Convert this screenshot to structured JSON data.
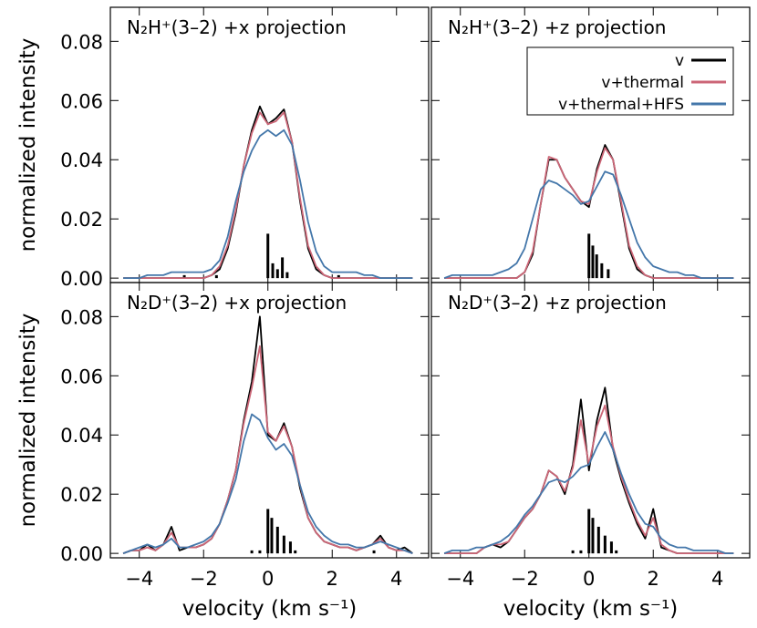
{
  "chart_data": [
    {
      "type": "line",
      "title": "N₂H⁺(3–2) +x projection",
      "ylabel": "normalized intensity",
      "x": [
        -4.5,
        -4.25,
        -4,
        -3.75,
        -3.5,
        -3.25,
        -3,
        -2.75,
        -2.5,
        -2.25,
        -2,
        -1.75,
        -1.5,
        -1.25,
        -1,
        -0.75,
        -0.5,
        -0.25,
        0,
        0.25,
        0.5,
        0.75,
        1,
        1.25,
        1.5,
        1.75,
        2,
        2.25,
        2.5,
        2.75,
        3,
        3.25,
        3.5,
        3.75,
        4,
        4.25,
        4.5
      ],
      "series": [
        {
          "color": "#000000",
          "values": [
            0,
            0,
            0,
            0,
            0,
            0,
            0,
            0,
            0,
            0,
            0,
            0.001,
            0.003,
            0.01,
            0.022,
            0.038,
            0.05,
            0.058,
            0.052,
            0.054,
            0.057,
            0.046,
            0.026,
            0.01,
            0.003,
            0.001,
            0,
            0,
            0,
            0,
            0,
            0,
            0,
            0,
            0,
            0,
            0
          ]
        },
        {
          "color": "#cc6677",
          "values": [
            0,
            0,
            0,
            0,
            0,
            0,
            0,
            0,
            0,
            0,
            0,
            0.001,
            0.004,
            0.011,
            0.023,
            0.038,
            0.049,
            0.056,
            0.052,
            0.053,
            0.056,
            0.046,
            0.027,
            0.011,
            0.004,
            0.001,
            0,
            0,
            0,
            0,
            0,
            0,
            0,
            0,
            0,
            0,
            0
          ]
        },
        {
          "color": "#4477aa",
          "values": [
            0,
            0,
            0,
            0.001,
            0.001,
            0.001,
            0.002,
            0.002,
            0.002,
            0.002,
            0.002,
            0.003,
            0.006,
            0.014,
            0.026,
            0.036,
            0.043,
            0.048,
            0.05,
            0.048,
            0.05,
            0.045,
            0.033,
            0.019,
            0.009,
            0.004,
            0.002,
            0.002,
            0.002,
            0.002,
            0.001,
            0.001,
            0,
            0,
            0,
            0,
            0
          ]
        }
      ],
      "components": {
        "x": [
          -2.6,
          -1.6,
          0,
          0.15,
          0.3,
          0.45,
          0.6,
          2.2
        ],
        "values": [
          0.001,
          0.001,
          0.015,
          0.005,
          0.003,
          0.007,
          0.002,
          0.001
        ]
      },
      "ylim": [
        -0.0015,
        0.0915
      ],
      "yticks": [
        {
          "value": 0,
          "label": "0.00"
        },
        {
          "value": 0.02,
          "label": "0.02"
        },
        {
          "value": 0.04,
          "label": "0.04"
        },
        {
          "value": 0.06,
          "label": "0.06"
        },
        {
          "value": 0.08,
          "label": "0.08"
        }
      ],
      "xlim": [
        -4.9,
        5.0
      ]
    },
    {
      "type": "line",
      "title": "N₂H⁺(3–2) +z projection",
      "legend": "upper right",
      "x": [
        -4.5,
        -4.25,
        -4,
        -3.75,
        -3.5,
        -3.25,
        -3,
        -2.75,
        -2.5,
        -2.25,
        -2,
        -1.75,
        -1.5,
        -1.25,
        -1,
        -0.75,
        -0.5,
        -0.25,
        0,
        0.25,
        0.5,
        0.75,
        1,
        1.25,
        1.5,
        1.75,
        2,
        2.25,
        2.5,
        2.75,
        3,
        3.25,
        3.5,
        3.75,
        4,
        4.25,
        4.5
      ],
      "series": [
        {
          "name": "v",
          "color": "#000000",
          "values": [
            0,
            0,
            0,
            0,
            0,
            0,
            0,
            0,
            0,
            0,
            0.002,
            0.008,
            0.025,
            0.04,
            0.04,
            0.034,
            0.03,
            0.026,
            0.024,
            0.037,
            0.045,
            0.04,
            0.025,
            0.01,
            0.003,
            0.001,
            0,
            0,
            0,
            0,
            0,
            0,
            0,
            0,
            0,
            0,
            0
          ]
        },
        {
          "name": "v+thermal",
          "color": "#cc6677",
          "values": [
            0,
            0,
            0,
            0,
            0,
            0,
            0,
            0,
            0,
            0,
            0.002,
            0.009,
            0.025,
            0.041,
            0.04,
            0.034,
            0.03,
            0.026,
            0.025,
            0.036,
            0.044,
            0.04,
            0.026,
            0.011,
            0.004,
            0.001,
            0,
            0,
            0,
            0,
            0,
            0,
            0,
            0,
            0,
            0,
            0
          ]
        },
        {
          "name": "v+thermal+HFS",
          "color": "#4477aa",
          "values": [
            0,
            0.001,
            0.001,
            0.001,
            0.001,
            0.001,
            0.001,
            0.002,
            0.003,
            0.005,
            0.01,
            0.02,
            0.03,
            0.033,
            0.032,
            0.03,
            0.028,
            0.025,
            0.026,
            0.031,
            0.036,
            0.035,
            0.028,
            0.02,
            0.012,
            0.007,
            0.004,
            0.003,
            0.002,
            0.002,
            0.001,
            0.001,
            0,
            0,
            0,
            0,
            0
          ]
        }
      ],
      "components": {
        "x": [
          0,
          0.12,
          0.24,
          0.4,
          0.6
        ],
        "values": [
          0.015,
          0.011,
          0.008,
          0.005,
          0.003
        ]
      },
      "ylim": [
        -0.0015,
        0.0915
      ],
      "xlim": [
        -4.9,
        5.0
      ]
    },
    {
      "type": "line",
      "title": "N₂D⁺(3–2) +x projection",
      "ylabel": "normalized intensity",
      "xlabel": "velocity (km s⁻¹)",
      "x": [
        -4.5,
        -4.25,
        -4,
        -3.75,
        -3.5,
        -3.25,
        -3,
        -2.75,
        -2.5,
        -2.25,
        -2,
        -1.75,
        -1.5,
        -1.25,
        -1,
        -0.75,
        -0.5,
        -0.25,
        0,
        0.25,
        0.5,
        0.75,
        1,
        1.25,
        1.5,
        1.75,
        2,
        2.25,
        2.5,
        2.75,
        3,
        3.25,
        3.5,
        3.75,
        4,
        4.25,
        4.5
      ],
      "series": [
        {
          "color": "#000000",
          "values": [
            0,
            0.001,
            0.001,
            0.003,
            0.001,
            0.003,
            0.009,
            0.001,
            0.002,
            0.002,
            0.003,
            0.005,
            0.01,
            0.018,
            0.028,
            0.045,
            0.058,
            0.08,
            0.04,
            0.038,
            0.044,
            0.036,
            0.022,
            0.012,
            0.007,
            0.004,
            0.003,
            0.002,
            0.002,
            0.001,
            0.002,
            0.003,
            0.006,
            0.002,
            0.001,
            0.002,
            0
          ]
        },
        {
          "color": "#cc6677",
          "values": [
            0,
            0.001,
            0.001,
            0.002,
            0.001,
            0.003,
            0.007,
            0.002,
            0.002,
            0.002,
            0.003,
            0.005,
            0.01,
            0.018,
            0.028,
            0.044,
            0.056,
            0.07,
            0.041,
            0.038,
            0.043,
            0.036,
            0.023,
            0.012,
            0.007,
            0.004,
            0.003,
            0.002,
            0.002,
            0.001,
            0.002,
            0.003,
            0.005,
            0.002,
            0.001,
            0.001,
            0
          ]
        },
        {
          "color": "#4477aa",
          "values": [
            0,
            0.001,
            0.002,
            0.003,
            0.002,
            0.003,
            0.005,
            0.002,
            0.002,
            0.003,
            0.004,
            0.006,
            0.01,
            0.017,
            0.025,
            0.038,
            0.047,
            0.045,
            0.039,
            0.035,
            0.037,
            0.033,
            0.023,
            0.014,
            0.009,
            0.006,
            0.004,
            0.003,
            0.003,
            0.002,
            0.002,
            0.003,
            0.004,
            0.003,
            0.002,
            0.001,
            0
          ]
        }
      ],
      "components": {
        "x": [
          -0.5,
          -0.25,
          0,
          0.12,
          0.3,
          0.5,
          0.7,
          0.85,
          3.3
        ],
        "values": [
          0.001,
          0.001,
          0.015,
          0.012,
          0.009,
          0.006,
          0.004,
          0.001,
          0.001
        ]
      },
      "ylim": [
        -0.0015,
        0.0915
      ],
      "yticks": [
        {
          "value": 0,
          "label": "0.00"
        },
        {
          "value": 0.02,
          "label": "0.02"
        },
        {
          "value": 0.04,
          "label": "0.04"
        },
        {
          "value": 0.06,
          "label": "0.06"
        },
        {
          "value": 0.08,
          "label": "0.08"
        }
      ],
      "xlim": [
        -4.9,
        5.0
      ],
      "xticks": [
        {
          "value": -4,
          "label": "−4"
        },
        {
          "value": -2,
          "label": "−2"
        },
        0,
        2,
        4
      ]
    },
    {
      "type": "line",
      "title": "N₂D⁺(3–2) +z projection",
      "xlabel": "velocity (km s⁻¹)",
      "x": [
        -4.5,
        -4.25,
        -4,
        -3.75,
        -3.5,
        -3.25,
        -3,
        -2.75,
        -2.5,
        -2.25,
        -2,
        -1.75,
        -1.5,
        -1.25,
        -1,
        -0.75,
        -0.5,
        -0.25,
        0,
        0.25,
        0.5,
        0.75,
        1,
        1.25,
        1.5,
        1.75,
        2,
        2.25,
        2.5,
        2.75,
        3,
        3.25,
        3.5,
        3.75,
        4,
        4.25,
        4.5
      ],
      "series": [
        {
          "color": "#000000",
          "values": [
            0,
            0,
            0,
            0,
            0,
            0.002,
            0.003,
            0.002,
            0.004,
            0.008,
            0.012,
            0.015,
            0.02,
            0.028,
            0.026,
            0.02,
            0.03,
            0.052,
            0.028,
            0.045,
            0.056,
            0.035,
            0.025,
            0.017,
            0.01,
            0.005,
            0.015,
            0.002,
            0.001,
            0,
            0,
            0,
            0,
            0,
            0,
            0,
            0
          ]
        },
        {
          "color": "#cc6677",
          "values": [
            0,
            0,
            0,
            0,
            0,
            0.002,
            0.003,
            0.003,
            0.004,
            0.008,
            0.012,
            0.015,
            0.02,
            0.028,
            0.026,
            0.021,
            0.029,
            0.045,
            0.03,
            0.043,
            0.05,
            0.036,
            0.026,
            0.018,
            0.011,
            0.006,
            0.012,
            0.003,
            0.001,
            0,
            0,
            0,
            0,
            0,
            0,
            0,
            0
          ]
        },
        {
          "color": "#4477aa",
          "values": [
            0,
            0.001,
            0.001,
            0.001,
            0.002,
            0.002,
            0.003,
            0.004,
            0.006,
            0.009,
            0.013,
            0.016,
            0.02,
            0.024,
            0.025,
            0.024,
            0.026,
            0.029,
            0.03,
            0.036,
            0.041,
            0.035,
            0.027,
            0.02,
            0.014,
            0.01,
            0.009,
            0.005,
            0.003,
            0.002,
            0.002,
            0.001,
            0.001,
            0.001,
            0.001,
            0,
            0
          ]
        }
      ],
      "components": {
        "x": [
          -0.5,
          -0.25,
          0,
          0.12,
          0.3,
          0.5,
          0.7,
          0.85
        ],
        "values": [
          0.001,
          0.001,
          0.015,
          0.012,
          0.009,
          0.006,
          0.004,
          0.001
        ]
      },
      "ylim": [
        -0.0015,
        0.0915
      ],
      "xlim": [
        -4.9,
        5.0
      ],
      "xticks": [
        {
          "value": -4,
          "label": "−4"
        },
        {
          "value": -2,
          "label": "−2"
        },
        0,
        2,
        4
      ]
    }
  ]
}
